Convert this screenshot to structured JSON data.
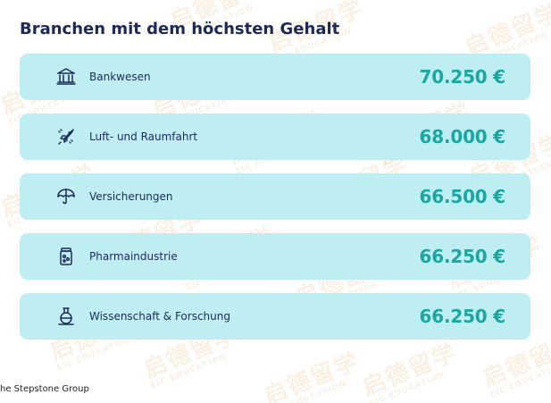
{
  "title": "Branchen mit dem höchsten Gehalt",
  "accent_color": "#1aa7a1",
  "row_background": "#bfeef2",
  "title_color": "#1c2a5a",
  "items": [
    {
      "label": "Bankwesen",
      "value": "70.250 €",
      "icon": "bank-icon"
    },
    {
      "label": "Luft- und Raumfahrt",
      "value": "68.000 €",
      "icon": "rocket-icon"
    },
    {
      "label": "Versicherungen",
      "value": "66.500 €",
      "icon": "umbrella-icon"
    },
    {
      "label": "Pharmaindustrie",
      "value": "66.250 €",
      "icon": "medicine-jar-icon"
    },
    {
      "label": "Wissenschaft & Forschung",
      "value": "66.250 €",
      "icon": "lab-flask-icon"
    }
  ],
  "source": "he Stepstone Group",
  "watermark": {
    "line1": "启德留学",
    "line2": "EIC EDUCATION"
  }
}
